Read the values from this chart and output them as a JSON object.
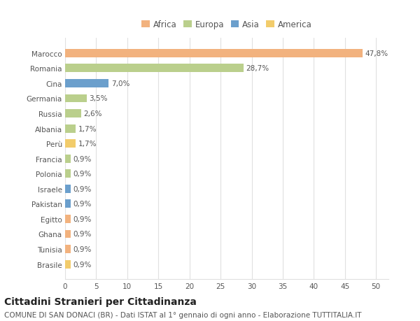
{
  "categories": [
    "Brasile",
    "Tunisia",
    "Ghana",
    "Egitto",
    "Pakistan",
    "Israele",
    "Polonia",
    "Francia",
    "Perù",
    "Albania",
    "Russia",
    "Germania",
    "Cina",
    "Romania",
    "Marocco"
  ],
  "values": [
    0.9,
    0.9,
    0.9,
    0.9,
    0.9,
    0.9,
    0.9,
    0.9,
    1.7,
    1.7,
    2.6,
    3.5,
    7.0,
    28.7,
    47.8
  ],
  "continents": [
    "America",
    "Africa",
    "Africa",
    "Africa",
    "Asia",
    "Asia",
    "Europa",
    "Europa",
    "America",
    "Europa",
    "Europa",
    "Europa",
    "Asia",
    "Europa",
    "Africa"
  ],
  "labels": [
    "0,9%",
    "0,9%",
    "0,9%",
    "0,9%",
    "0,9%",
    "0,9%",
    "0,9%",
    "0,9%",
    "1,7%",
    "1,7%",
    "2,6%",
    "3,5%",
    "7,0%",
    "28,7%",
    "47,8%"
  ],
  "continent_colors": {
    "Africa": "#F2B27E",
    "Europa": "#BACF8C",
    "Asia": "#6B9FCC",
    "America": "#F2CC6B"
  },
  "legend_order": [
    "Africa",
    "Europa",
    "Asia",
    "America"
  ],
  "xlim": [
    0,
    52
  ],
  "xticks": [
    0,
    5,
    10,
    15,
    20,
    25,
    30,
    35,
    40,
    45,
    50
  ],
  "title": "Cittadini Stranieri per Cittadinanza",
  "subtitle": "COMUNE DI SAN DONACI (BR) - Dati ISTAT al 1° gennaio di ogni anno - Elaborazione TUTTITALIA.IT",
  "background_color": "#ffffff",
  "grid_color": "#e0e0e0",
  "bar_height": 0.55,
  "label_fontsize": 7.5,
  "tick_fontsize": 7.5,
  "title_fontsize": 10,
  "subtitle_fontsize": 7.5
}
